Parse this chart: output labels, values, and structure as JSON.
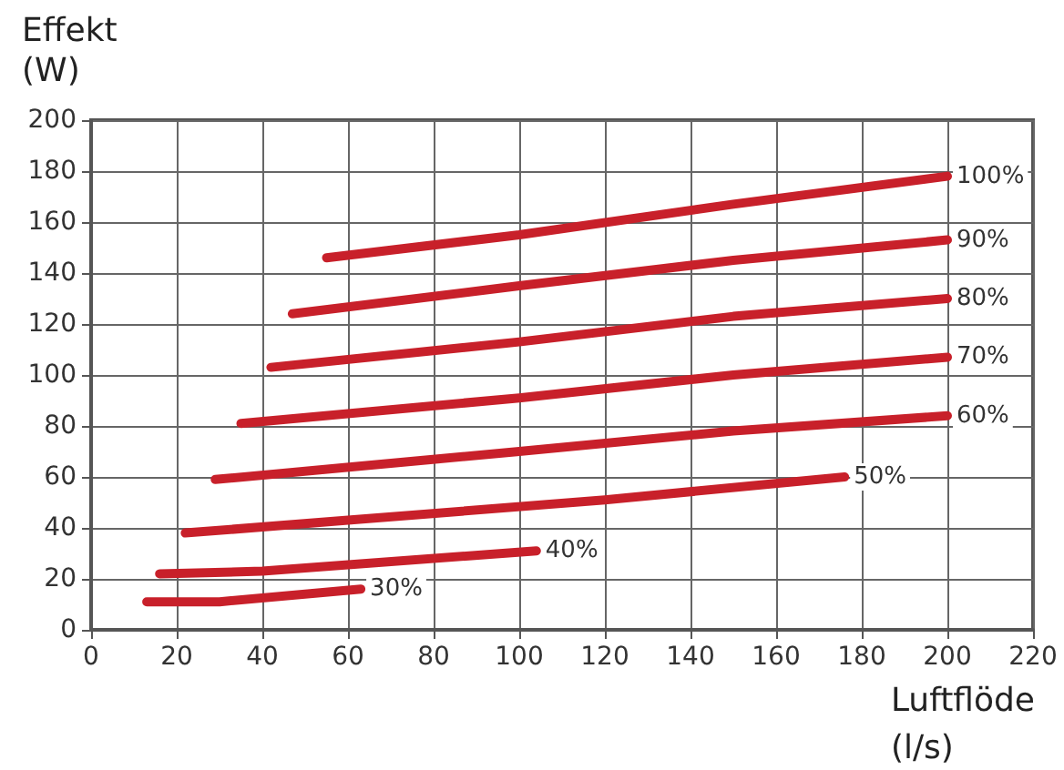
{
  "chart_data": {
    "type": "line",
    "ylabel": "Effekt\n(W)",
    "xlabel": "Luftflöde\n(l/s)",
    "xlim": [
      0,
      220
    ],
    "xticks": [
      0,
      20,
      40,
      60,
      80,
      100,
      120,
      140,
      160,
      180,
      200,
      220
    ],
    "ylim": [
      0,
      200
    ],
    "yticks": [
      0,
      20,
      40,
      60,
      80,
      100,
      120,
      140,
      160,
      180,
      200
    ],
    "grid": true,
    "legend": false,
    "marker": "none",
    "line_style": "solid",
    "series": [
      {
        "name": "100%",
        "color": "#c8202a",
        "x": [
          55,
          100,
          150,
          200
        ],
        "values": [
          146,
          155,
          167,
          178
        ]
      },
      {
        "name": "90%",
        "color": "#c8202a",
        "x": [
          47,
          100,
          150,
          200
        ],
        "values": [
          124,
          135,
          145,
          153
        ]
      },
      {
        "name": "80%",
        "color": "#c8202a",
        "x": [
          42,
          100,
          150,
          200
        ],
        "values": [
          103,
          113,
          123,
          130
        ]
      },
      {
        "name": "70%",
        "color": "#c8202a",
        "x": [
          35,
          100,
          150,
          200
        ],
        "values": [
          81,
          91,
          100,
          107
        ]
      },
      {
        "name": "60%",
        "color": "#c8202a",
        "x": [
          29,
          100,
          150,
          200
        ],
        "values": [
          59,
          70,
          78,
          84
        ]
      },
      {
        "name": "50%",
        "color": "#c8202a",
        "x": [
          22,
          60,
          120,
          176
        ],
        "values": [
          38,
          43,
          51,
          60
        ]
      },
      {
        "name": "40%",
        "color": "#c8202a",
        "x": [
          16,
          40,
          104
        ],
        "values": [
          22,
          23,
          31
        ]
      },
      {
        "name": "30%",
        "color": "#c8202a",
        "x": [
          13,
          30,
          63
        ],
        "values": [
          11,
          11,
          16
        ]
      }
    ]
  }
}
